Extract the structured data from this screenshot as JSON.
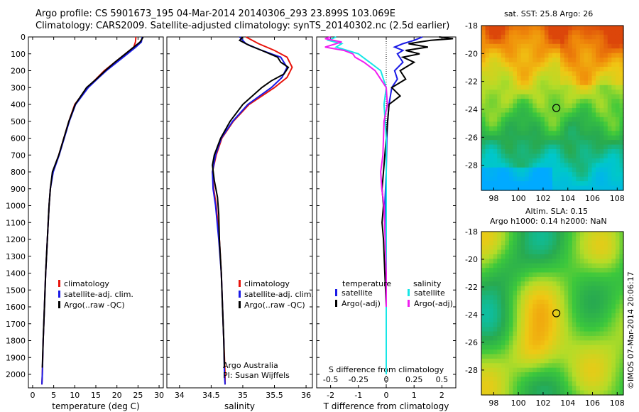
{
  "title_line1": "Argo profile: CS 5901673_195 04-Mar-2014 20140306_293 23.899S 103.069E",
  "title_line2": "Climatology: CARS2009. Satellite-adjusted climatology: synTS_20140302.nc (2.5d earlier)",
  "sst_title": "sat. SST: 25.8 Argo: 26",
  "sla_title1": "Altim. SLA: 0.15",
  "sla_title2": "Argo h1000: 0.14 h2000: NaN",
  "stamp": "©IMOS 07-Mar-2014 20:06:17",
  "attribution": [
    "Argo Australia",
    "PI: Susan Wijffels"
  ],
  "colors": {
    "climatology": "#e8140c",
    "satellite": "#1a1ae6",
    "argo": "#000000",
    "salinity_sat": "#16e6e6",
    "salinity_argo": "#f01ef0"
  },
  "chart_data": [
    {
      "type": "line",
      "name": "temperature",
      "xlabel": "temperature (deg C)",
      "ylabel": "",
      "xlim": [
        -1,
        31
      ],
      "ylim": [
        2080,
        0
      ],
      "xticks": [
        "0",
        "5",
        "10",
        "15",
        "20",
        "25",
        "30"
      ],
      "xtick_values": [
        0,
        5,
        10,
        15,
        20,
        25,
        30
      ],
      "yticks": [
        "0",
        "100",
        "200",
        "300",
        "400",
        "500",
        "600",
        "700",
        "800",
        "900",
        "1000",
        "1100",
        "1200",
        "1300",
        "1400",
        "1500",
        "1600",
        "1700",
        "1800",
        "1900",
        "2000"
      ],
      "legend": [
        "climatology",
        "satellite-adj. clim.",
        "Argo(..raw -QC)"
      ],
      "series": [
        {
          "name": "climatology",
          "color": "climatology",
          "y": [
            0,
            30,
            60,
            100,
            150,
            200,
            250,
            300,
            400,
            500,
            600,
            700,
            800,
            900,
            1000,
            1200,
            1400,
            1600,
            1800,
            2000,
            2060
          ],
          "x": [
            24.5,
            24.4,
            24,
            22,
            19.5,
            17,
            15,
            13,
            10,
            8.6,
            7.4,
            6.2,
            4.8,
            4.2,
            3.9,
            3.5,
            3.1,
            2.8,
            2.5,
            2.3,
            2.2
          ]
        },
        {
          "name": "satellite-adj. clim.",
          "color": "satellite",
          "y": [
            0,
            30,
            60,
            100,
            150,
            200,
            250,
            300,
            400,
            500,
            600,
            700,
            800,
            900,
            1000,
            1200,
            1400,
            1600,
            1800,
            2000,
            2060
          ],
          "x": [
            26,
            25.8,
            24.5,
            22.5,
            20,
            17.5,
            15.3,
            13.2,
            10.2,
            8.7,
            7.5,
            6.3,
            4.9,
            4.2,
            3.9,
            3.5,
            3.1,
            2.8,
            2.5,
            2.3,
            2.2
          ]
        },
        {
          "name": "Argo(..raw -QC)",
          "color": "argo",
          "y": [
            0,
            10,
            30,
            60,
            100,
            150,
            200,
            250,
            300,
            400,
            500,
            600,
            700,
            800,
            900,
            1000,
            1200,
            1400,
            1600,
            1800,
            1960
          ],
          "x": [
            26.2,
            26,
            25.5,
            24,
            22,
            19.5,
            17.2,
            15.1,
            12.8,
            10.1,
            8.6,
            7.4,
            6.2,
            4.7,
            4.2,
            3.9,
            3.5,
            3.1,
            2.8,
            2.5,
            2.3
          ]
        }
      ]
    },
    {
      "type": "line",
      "name": "salinity",
      "xlabel": "salinity",
      "ylabel": "",
      "xlim": [
        33.8,
        36.1
      ],
      "ylim": [
        2080,
        0
      ],
      "xticks": [
        "34",
        "34.5",
        "35",
        "35.5",
        "36"
      ],
      "xtick_values": [
        34,
        34.5,
        35,
        35.5,
        36
      ],
      "legend": [
        "climatology",
        "satellite-adj. clim.",
        "Argo(..raw -QC)"
      ],
      "series": [
        {
          "name": "climatology",
          "color": "climatology",
          "y": [
            0,
            40,
            80,
            120,
            180,
            240,
            300,
            400,
            500,
            600,
            700,
            800,
            900,
            1000,
            1200,
            1400,
            1600,
            1800,
            2000,
            2060
          ],
          "x": [
            35.05,
            35.25,
            35.5,
            35.7,
            35.78,
            35.7,
            35.5,
            35.1,
            34.85,
            34.67,
            34.58,
            34.52,
            34.54,
            34.58,
            34.63,
            34.66,
            34.68,
            34.7,
            34.72,
            34.72
          ]
        },
        {
          "name": "satellite-adj. clim.",
          "color": "satellite",
          "y": [
            0,
            40,
            80,
            120,
            180,
            240,
            300,
            400,
            500,
            600,
            700,
            800,
            900,
            1000,
            1200,
            1400,
            1600,
            1800,
            2000,
            2060
          ],
          "x": [
            34.95,
            35.05,
            35.3,
            35.6,
            35.7,
            35.62,
            35.45,
            35.08,
            34.84,
            34.66,
            34.57,
            34.52,
            34.53,
            34.57,
            34.62,
            34.66,
            34.68,
            34.7,
            34.71,
            34.72
          ]
        },
        {
          "name": "Argo(..raw -QC)",
          "color": "argo",
          "y": [
            0,
            20,
            50,
            80,
            120,
            150,
            180,
            220,
            260,
            300,
            400,
            500,
            600,
            700,
            760,
            850,
            950,
            1050,
            1200,
            1400,
            1600,
            1800,
            1960
          ],
          "x": [
            35.0,
            34.95,
            35.1,
            35.3,
            35.55,
            35.6,
            35.72,
            35.65,
            35.45,
            35.3,
            35.0,
            34.8,
            34.65,
            34.55,
            34.52,
            34.55,
            34.6,
            34.62,
            34.63,
            34.66,
            34.68,
            34.7,
            34.71
          ]
        }
      ]
    },
    {
      "type": "line",
      "name": "differences",
      "xlabel": "T difference from climatology",
      "xlabel_top": "S difference from climatology",
      "xlim": [
        -2.5,
        2.5
      ],
      "ylim": [
        2080,
        0
      ],
      "xticks": [
        "-2",
        "-1",
        "0",
        "1",
        "2"
      ],
      "xtick_values": [
        -2,
        -1,
        0,
        1,
        2
      ],
      "sticks": [
        "-0.5",
        "-0.25",
        "0",
        "0.25",
        "0.5"
      ],
      "stick_values": [
        -0.5,
        -0.25,
        0,
        0.25,
        0.5
      ],
      "legend_temperature": {
        "header": "temperature",
        "items": [
          "satellite",
          "Argo(-adj)"
        ]
      },
      "legend_salinity": {
        "header": "salinity",
        "items": [
          "satellite",
          "Argo(-adj)"
        ]
      },
      "series": [
        {
          "name": "temperature satellite",
          "color": "satellite",
          "y": [
            0,
            20,
            40,
            60,
            80,
            100,
            150,
            200,
            250,
            300,
            400,
            500,
            600,
            800,
            1000,
            1200,
            1400,
            1600,
            1800,
            2000
          ],
          "x": [
            1.3,
            1.0,
            0.6,
            0.3,
            0.6,
            0.4,
            0.6,
            0.3,
            0.4,
            0.2,
            0.1,
            0.05,
            0.02,
            0.0,
            -0.05,
            -0.02,
            0.0,
            0.0,
            0.0,
            0.0
          ]
        },
        {
          "name": "temperature Argo(-adj)",
          "color": "argo",
          "y": [
            0,
            10,
            20,
            40,
            60,
            80,
            100,
            120,
            150,
            200,
            250,
            300,
            350,
            400,
            500,
            600,
            700,
            800,
            900,
            1000,
            1100,
            1200,
            1400,
            1600,
            1800,
            1960
          ],
          "x": [
            1.9,
            2.4,
            1.6,
            0.8,
            1.5,
            0.7,
            1.2,
            0.6,
            1.0,
            0.5,
            0.7,
            0.2,
            0.5,
            0.1,
            0.05,
            0.0,
            -0.05,
            -0.1,
            -0.15,
            -0.1,
            -0.15,
            -0.1,
            -0.05,
            0.0,
            0.0,
            0.0
          ]
        },
        {
          "name": "salinity satellite",
          "color": "salinity_sat",
          "y": [
            0,
            20,
            40,
            60,
            80,
            100,
            150,
            200,
            300,
            400,
            600,
            800,
            1000,
            1200,
            1400,
            1600,
            1800,
            2000
          ],
          "x": [
            -0.45,
            -0.52,
            -0.4,
            -0.45,
            -0.35,
            -0.25,
            -0.15,
            -0.05,
            0.0,
            -0.02,
            0.0,
            0.0,
            0.0,
            0.0,
            0.0,
            0.0,
            0.0,
            0.0
          ]
        },
        {
          "name": "salinity Argo(-adj)",
          "color": "salinity_argo",
          "y": [
            0,
            10,
            30,
            60,
            80,
            100,
            120,
            150,
            200,
            250,
            300,
            400,
            500,
            700,
            800,
            900,
            1000,
            1200,
            1400,
            1600
          ],
          "x": [
            -0.5,
            -0.55,
            -0.4,
            -0.55,
            -0.38,
            -0.3,
            -0.28,
            -0.2,
            -0.1,
            -0.05,
            0.0,
            0.01,
            -0.02,
            -0.03,
            -0.05,
            -0.04,
            -0.02,
            -0.01,
            0.0,
            0.0
          ]
        }
      ]
    },
    {
      "type": "heatmap",
      "name": "sst-map",
      "xlim": [
        97,
        108.5
      ],
      "ylim": [
        -29.8,
        -18
      ],
      "xticks": [
        "98",
        "100",
        "102",
        "104",
        "106",
        "108"
      ],
      "xtick_values": [
        98,
        100,
        102,
        104,
        106,
        108
      ],
      "yticks": [
        "-18",
        "-20",
        "-22",
        "-24",
        "-26",
        "-28"
      ],
      "ytick_values": [
        -18,
        -20,
        -22,
        -24,
        -26,
        -28
      ],
      "marker": {
        "x": 103.07,
        "y": -23.9
      }
    },
    {
      "type": "heatmap",
      "name": "sla-map",
      "xlim": [
        97,
        108.5
      ],
      "ylim": [
        -29.8,
        -18
      ],
      "xticks": [
        "98",
        "100",
        "102",
        "104",
        "106",
        "108"
      ],
      "xtick_values": [
        98,
        100,
        102,
        104,
        106,
        108
      ],
      "yticks": [
        "-18",
        "-20",
        "-22",
        "-24",
        "-26",
        "-28"
      ],
      "ytick_values": [
        -18,
        -20,
        -22,
        -24,
        -26,
        -28
      ],
      "marker": {
        "x": 103.07,
        "y": -23.9
      }
    }
  ]
}
